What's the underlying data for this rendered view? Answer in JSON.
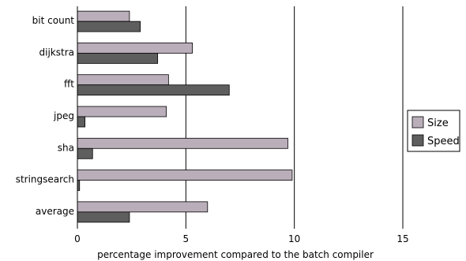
{
  "chart_data": {
    "type": "bar",
    "orientation": "horizontal",
    "categories": [
      "bit count",
      "dijkstra",
      "fft",
      "jpeg",
      "sha",
      "stringsearch",
      "average"
    ],
    "series": [
      {
        "name": "Size",
        "values": [
          2.4,
          5.3,
          4.2,
          4.1,
          9.7,
          9.9,
          6.0
        ],
        "color": "#b9aeb9"
      },
      {
        "name": "Speed",
        "values": [
          2.9,
          3.7,
          7.0,
          0.35,
          0.7,
          0.1,
          2.4
        ],
        "color": "#5e5e5e"
      }
    ],
    "xlabel": "percentage improvement compared to the batch compiler",
    "ylabel": "",
    "title": "",
    "xlim": [
      0,
      15
    ],
    "xticks": [
      "0",
      "5",
      "10",
      "15"
    ],
    "grid": "vertical",
    "legend": "right"
  }
}
